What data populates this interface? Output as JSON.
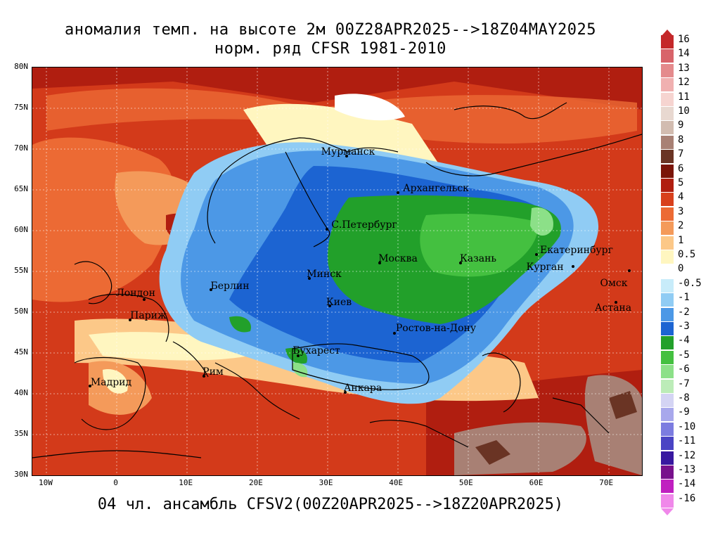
{
  "title_line1": "аномалия темп. на высоте 2м 00Z28APR2025-->18Z04MAY2025",
  "title_line2": "норм. ряд CFSR 1981-2010",
  "footer": "04 чл. ансамбль CFSV2(00Z20APR2025-->18Z20APR2025)",
  "lat_labels": [
    "80N",
    "75N",
    "70N",
    "65N",
    "60N",
    "55N",
    "50N",
    "45N",
    "40N",
    "35N",
    "30N"
  ],
  "lon_labels": [
    "10W",
    "0",
    "10E",
    "20E",
    "30E",
    "40E",
    "50E",
    "60E",
    "70E"
  ],
  "cities": [
    {
      "name": "Мурманск"
    },
    {
      "name": "Архангельск"
    },
    {
      "name": "С.Петербург"
    },
    {
      "name": "Москва"
    },
    {
      "name": "Казань"
    },
    {
      "name": "Екатеринбург"
    },
    {
      "name": "Курган"
    },
    {
      "name": "Омск"
    },
    {
      "name": "Астана"
    },
    {
      "name": "Минск"
    },
    {
      "name": "Берлин"
    },
    {
      "name": "Лондон"
    },
    {
      "name": "Париж"
    },
    {
      "name": "Киев"
    },
    {
      "name": "Ростов-на-Дону"
    },
    {
      "name": "Бухарест"
    },
    {
      "name": "Рим"
    },
    {
      "name": "Мадрид"
    },
    {
      "name": "Анкара"
    }
  ],
  "colorbar": {
    "labels": [
      "16",
      "14",
      "13",
      "12",
      "11",
      "10",
      "9",
      "8",
      "7",
      "6",
      "5",
      "4",
      "3",
      "2",
      "1",
      "0.5",
      "0",
      "-0.5",
      "-1",
      "-2",
      "-3",
      "-4",
      "-5",
      "-6",
      "-7",
      "-8",
      "-9",
      "-10",
      "-11",
      "-12",
      "-13",
      "-14",
      "-16"
    ],
    "colors": [
      "#c4282a",
      "#d8646a",
      "#e48a8c",
      "#f0b0b0",
      "#f6d4d0",
      "#e8d8d0",
      "#d2bcb0",
      "#a88074",
      "#6a3424",
      "#7a1408",
      "#b01e10",
      "#d8401c",
      "#ec6a34",
      "#f49a5a",
      "#fcc888",
      "#fff6c0",
      "#ffffff",
      "#c8ecfa",
      "#90ccf4",
      "#4c98e6",
      "#1c64d2",
      "#22a02a",
      "#44c040",
      "#8ce088",
      "#bcecb8",
      "#d4d4f4",
      "#a8a8ec",
      "#7c7ce0",
      "#4a44c4",
      "#3818a0",
      "#78108c",
      "#c020c0",
      "#f088ea"
    ]
  },
  "chart_data": {
    "type": "heatmap",
    "variable": "аномалия темп. на высоте 2м",
    "xlim": [
      -12,
      75
    ],
    "ylim": [
      30,
      80
    ],
    "x_ticks": [
      -10,
      0,
      10,
      20,
      30,
      40,
      50,
      60,
      70
    ],
    "y_ticks": [
      30,
      35,
      40,
      45,
      50,
      55,
      60,
      65,
      70,
      75,
      80
    ],
    "levels": [
      -16,
      -14,
      -13,
      -12,
      -11,
      -10,
      -9,
      -8,
      -7,
      -6,
      -5,
      -4,
      -3,
      -2,
      -1,
      -0.5,
      0,
      0.5,
      1,
      2,
      3,
      4,
      5,
      6,
      7,
      8,
      9,
      10,
      11,
      12,
      13,
      14,
      16
    ]
  }
}
